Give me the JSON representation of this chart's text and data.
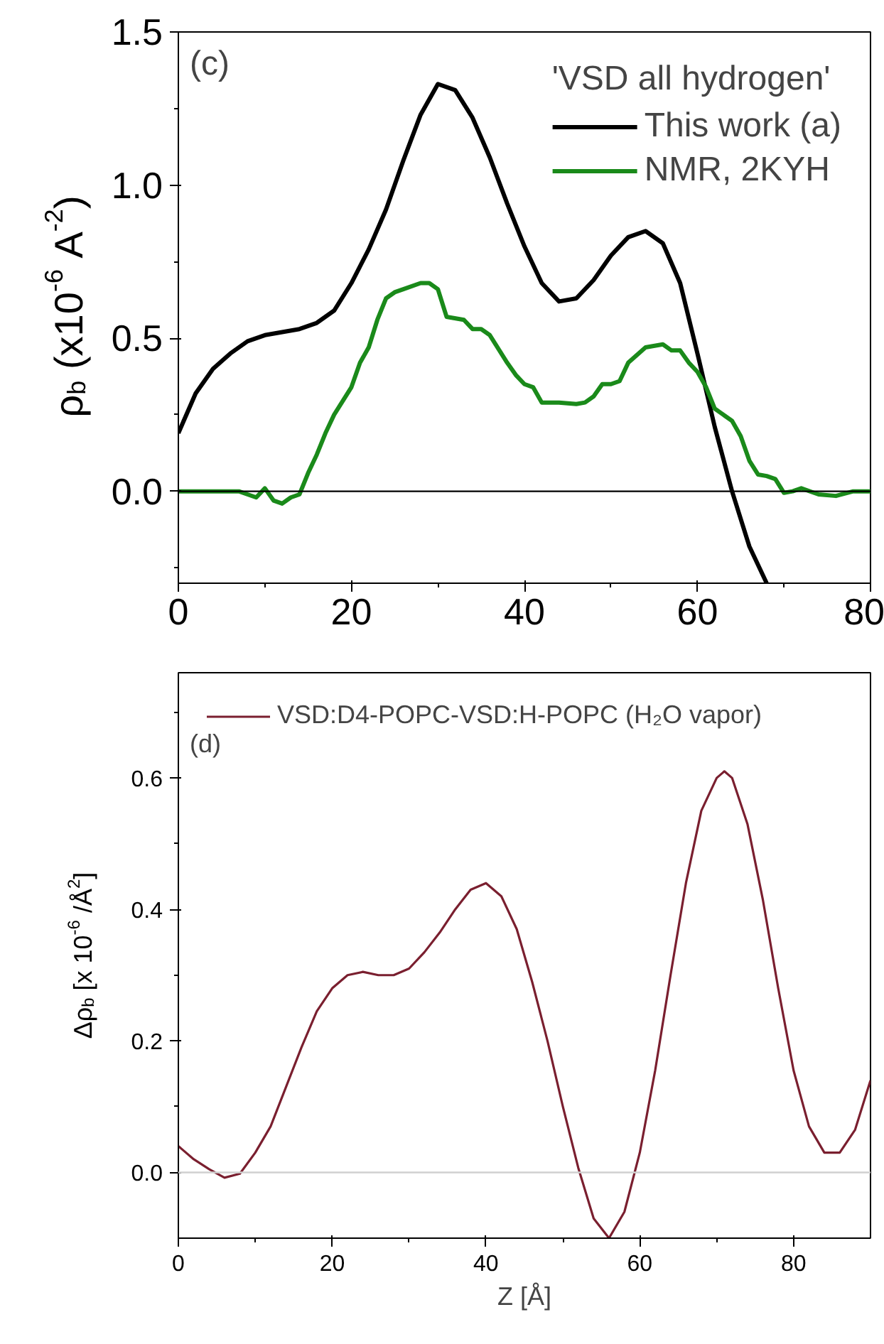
{
  "chart_data": [
    {
      "type": "line",
      "ylabel": "ρ$_{b}$ (x10$^{-6}$ A$^{-2}$)",
      "legend_title": "'VSD all hydrogen'",
      "legend": "top right",
      "grid": false,
      "annotations": [
        "(c)"
      ],
      "xlim": [
        0,
        80
      ],
      "xticks": [
        0,
        {
          "value": 10,
          "label": null
        },
        20,
        {
          "value": 30,
          "label": null
        },
        40,
        {
          "value": 50,
          "label": null
        },
        60,
        {
          "value": 70,
          "label": null
        },
        80
      ],
      "ylim": [
        -0.3,
        1.5
      ],
      "yticks": [
        {
          "value": -0.25,
          "label": null
        },
        "0.0",
        {
          "value": 0.25,
          "label": null
        },
        0.5,
        {
          "value": 0.75,
          "label": null
        },
        "1.0",
        {
          "value": 1.25,
          "label": null
        },
        1.5
      ],
      "ref_lines": [
        {
          "axis": "y",
          "value": 0,
          "label": null,
          "color": "#000000"
        }
      ],
      "series": [
        {
          "name": "This work (a)",
          "color": "#000000",
          "x": [
            0,
            2,
            4,
            6,
            8,
            10,
            14,
            16,
            18,
            20,
            22,
            24,
            26,
            28,
            30,
            32,
            34,
            36,
            38,
            40,
            42,
            44,
            46,
            48,
            50,
            52,
            54,
            56,
            58,
            60,
            62,
            64,
            66,
            68
          ],
          "values": [
            0.19,
            0.32,
            0.4,
            0.45,
            0.49,
            0.51,
            0.53,
            0.55,
            0.59,
            0.68,
            0.79,
            0.92,
            1.08,
            1.23,
            1.33,
            1.31,
            1.22,
            1.09,
            0.94,
            0.8,
            0.68,
            0.62,
            0.63,
            0.69,
            0.77,
            0.83,
            0.85,
            0.81,
            0.68,
            0.45,
            0.21,
            0.0,
            -0.18,
            -0.3
          ]
        },
        {
          "name": "NMR, 2KYH",
          "color": "#1a8a1a",
          "x": [
            0,
            2,
            4,
            6,
            7,
            8,
            9,
            10,
            11,
            12,
            13,
            14,
            15,
            16,
            17,
            18,
            20,
            21,
            22,
            23,
            24,
            25,
            26,
            28,
            29,
            30,
            31,
            33,
            34,
            35,
            36,
            38,
            39,
            40,
            41,
            42,
            44,
            46,
            47,
            48,
            49,
            50,
            51,
            52,
            54,
            56,
            57,
            58,
            59,
            60,
            61,
            62,
            64,
            65,
            66,
            67,
            68,
            69,
            70,
            71,
            72,
            74,
            76,
            78,
            80
          ],
          "values": [
            0,
            0,
            0,
            0,
            0,
            -0.01,
            -0.02,
            0.01,
            -0.03,
            -0.04,
            -0.02,
            -0.01,
            0.06,
            0.12,
            0.19,
            0.25,
            0.34,
            0.42,
            0.47,
            0.56,
            0.63,
            0.65,
            0.66,
            0.68,
            0.68,
            0.66,
            0.57,
            0.56,
            0.53,
            0.53,
            0.51,
            0.42,
            0.38,
            0.35,
            0.34,
            0.29,
            0.29,
            0.285,
            0.29,
            0.31,
            0.35,
            0.35,
            0.36,
            0.42,
            0.47,
            0.48,
            0.46,
            0.46,
            0.42,
            0.39,
            0.34,
            0.27,
            0.23,
            0.18,
            0.1,
            0.055,
            0.05,
            0.04,
            -0.005,
            0.0,
            0.01,
            -0.01,
            -0.015,
            0.0,
            0
          ]
        }
      ]
    },
    {
      "type": "line",
      "xlabel": "Z [Å]",
      "ylabel": "Δρ$_{b}$ [x 10$^{-6}$ /Å$^{2}$]",
      "legend": "top left",
      "grid": false,
      "annotations": [
        "(d)"
      ],
      "xlim": [
        0,
        90
      ],
      "xticks": [
        0,
        {
          "value": 10,
          "label": null
        },
        20,
        {
          "value": 30,
          "label": null
        },
        40,
        {
          "value": 50,
          "label": null
        },
        60,
        {
          "value": 70,
          "label": null
        },
        80
      ],
      "ylim": [
        -0.1,
        0.76
      ],
      "yticks": [
        "0.0",
        {
          "value": 0.1,
          "label": null
        },
        0.2,
        {
          "value": 0.3,
          "label": null
        },
        0.4,
        {
          "value": 0.5,
          "label": null
        },
        0.6,
        {
          "value": 0.7,
          "label": null
        }
      ],
      "ref_lines": [
        {
          "axis": "y",
          "value": 0,
          "label": null,
          "color": "#d0d0d0"
        }
      ],
      "series": [
        {
          "name": "VSD:D4-POPC-VSD:H-POPC (H₂O vapor)",
          "color": "#7a1f2f",
          "x": [
            0,
            2,
            4,
            6,
            8,
            10,
            12,
            14,
            16,
            18,
            20,
            22,
            24,
            26,
            28,
            30,
            32,
            34,
            36,
            38,
            40,
            42,
            44,
            46,
            48,
            50,
            52,
            54,
            56,
            58,
            60,
            62,
            64,
            66,
            68,
            70,
            71,
            72,
            74,
            76,
            78,
            80,
            82,
            84,
            86,
            88,
            90
          ],
          "values": [
            0.04,
            0.02,
            0.005,
            -0.008,
            -0.002,
            0.03,
            0.07,
            0.13,
            0.19,
            0.245,
            0.28,
            0.3,
            0.305,
            0.3,
            0.3,
            0.31,
            0.335,
            0.365,
            0.4,
            0.43,
            0.44,
            0.42,
            0.37,
            0.29,
            0.2,
            0.1,
            0.007,
            -0.07,
            -0.1,
            -0.06,
            0.03,
            0.155,
            0.3,
            0.44,
            0.55,
            0.6,
            0.61,
            0.6,
            0.53,
            0.415,
            0.28,
            0.155,
            0.07,
            0.03,
            0.03,
            0.065,
            0.14
          ]
        }
      ]
    }
  ]
}
